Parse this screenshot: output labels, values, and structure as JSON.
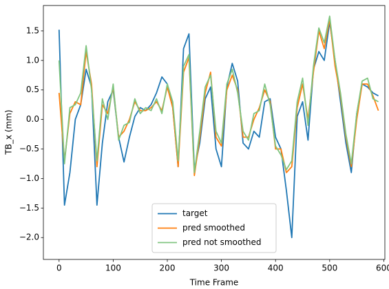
{
  "chart_data": {
    "type": "line",
    "xlabel": "Time Frame",
    "ylabel": "TB_x (mm)",
    "x": [
      0,
      10,
      20,
      30,
      40,
      50,
      60,
      70,
      80,
      90,
      100,
      110,
      120,
      130,
      140,
      150,
      160,
      170,
      180,
      190,
      200,
      210,
      220,
      230,
      240,
      250,
      260,
      270,
      280,
      290,
      300,
      310,
      320,
      330,
      340,
      350,
      360,
      370,
      380,
      390,
      400,
      410,
      420,
      430,
      440,
      450,
      460,
      470,
      480,
      490,
      500,
      510,
      520,
      530,
      540,
      550,
      560,
      570,
      580,
      590
    ],
    "series": [
      {
        "name": "target",
        "color": "#1f77b4",
        "values": [
          1.52,
          -1.45,
          -0.9,
          0.0,
          0.25,
          0.85,
          0.55,
          -1.45,
          -0.4,
          0.3,
          0.5,
          -0.3,
          -0.72,
          -0.3,
          0.05,
          0.2,
          0.15,
          0.25,
          0.45,
          0.72,
          0.6,
          0.2,
          -0.8,
          1.2,
          1.45,
          -0.85,
          -0.4,
          0.35,
          0.55,
          -0.5,
          -0.8,
          0.55,
          0.95,
          0.65,
          -0.4,
          -0.5,
          -0.2,
          -0.3,
          0.3,
          0.35,
          -0.3,
          -0.5,
          -1.2,
          -2.0,
          0.05,
          0.3,
          -0.35,
          0.85,
          1.15,
          1.0,
          1.65,
          1.0,
          0.3,
          -0.4,
          -0.9,
          0.1,
          0.6,
          0.55,
          0.45,
          0.4
        ]
      },
      {
        "name": "pred smoothed",
        "color": "#ff7f0e",
        "values": [
          0.45,
          -0.7,
          0.1,
          0.3,
          0.25,
          1.15,
          0.6,
          -0.8,
          0.25,
          0.1,
          0.55,
          -0.3,
          -0.2,
          0.0,
          0.3,
          0.15,
          0.15,
          0.2,
          0.3,
          0.15,
          0.55,
          0.2,
          -0.8,
          0.8,
          1.05,
          -0.95,
          -0.3,
          0.45,
          0.8,
          -0.3,
          -0.45,
          0.5,
          0.75,
          0.5,
          -0.3,
          -0.3,
          0.0,
          0.2,
          0.5,
          0.3,
          -0.5,
          -0.5,
          -0.9,
          -0.8,
          0.2,
          0.6,
          0.0,
          0.8,
          1.5,
          1.2,
          1.7,
          0.9,
          0.4,
          -0.3,
          -0.8,
          0.0,
          0.6,
          0.6,
          0.4,
          0.15
        ]
      },
      {
        "name": "pred not smoothed",
        "color": "#80c580",
        "values": [
          1.0,
          -0.75,
          0.2,
          0.25,
          0.45,
          1.25,
          0.5,
          -0.7,
          0.35,
          0.0,
          0.6,
          -0.35,
          -0.1,
          -0.05,
          0.35,
          0.1,
          0.2,
          0.15,
          0.35,
          0.1,
          0.6,
          0.3,
          -0.7,
          0.9,
          1.1,
          -0.9,
          -0.2,
          0.55,
          0.75,
          -0.2,
          -0.4,
          0.6,
          0.85,
          0.45,
          -0.2,
          -0.35,
          0.1,
          0.15,
          0.6,
          0.25,
          -0.45,
          -0.6,
          -0.85,
          -0.7,
          0.3,
          0.7,
          -0.1,
          0.9,
          1.55,
          1.3,
          1.75,
          1.0,
          0.45,
          -0.25,
          -0.75,
          0.1,
          0.65,
          0.7,
          0.35,
          0.3
        ]
      }
    ],
    "xlim": [
      -29,
      602
    ],
    "xticks": [
      0,
      100,
      200,
      300,
      400,
      500,
      600
    ],
    "ylim": [
      -2.37,
      1.93
    ],
    "yticks": [
      {
        "value": -2.0,
        "label": "−2.0"
      },
      {
        "value": -1.5,
        "label": "−1.5"
      },
      {
        "value": -1.0,
        "label": "−1.0"
      },
      {
        "value": -0.5,
        "label": "−0.5"
      },
      {
        "value": 0,
        "label": "0.0"
      },
      {
        "value": 0.5,
        "label": "0.5"
      },
      {
        "value": 1.0,
        "label": "1.0"
      },
      {
        "value": 1.5,
        "label": "1.5"
      }
    ],
    "legend": "lower center"
  }
}
